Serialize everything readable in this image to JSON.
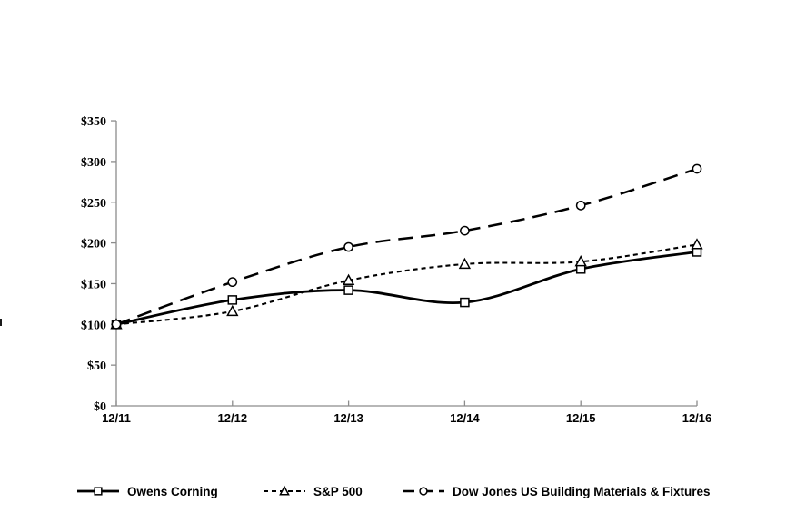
{
  "page": {
    "background": "#ffffff"
  },
  "chart_data": {
    "type": "line",
    "title": "",
    "x_categories": [
      "12/11",
      "12/12",
      "12/13",
      "12/14",
      "12/15",
      "12/16"
    ],
    "y_axis": {
      "min": 0,
      "max": 350,
      "step": 50,
      "tick_labels": [
        "$0",
        "$50",
        "$100",
        "$150",
        "$200",
        "$250",
        "$300",
        "$350"
      ]
    },
    "grid": false,
    "legend_position": "bottom",
    "axis_color": "#8c8c8c",
    "line_color": "#000000",
    "marker_fill": "#ffffff",
    "series": [
      {
        "name": "Owens Corning",
        "values": [
          100,
          130,
          142,
          127,
          168,
          189
        ],
        "line_style": "solid",
        "marker": "square"
      },
      {
        "name": "S&P 500",
        "values": [
          100,
          116,
          154,
          174,
          177,
          198
        ],
        "line_style": "short-dash",
        "marker": "triangle"
      },
      {
        "name": "Dow Jones US Building Materials & Fixtures",
        "values": [
          100,
          152,
          195,
          215,
          246,
          291
        ],
        "line_style": "long-dash",
        "marker": "circle"
      }
    ]
  }
}
